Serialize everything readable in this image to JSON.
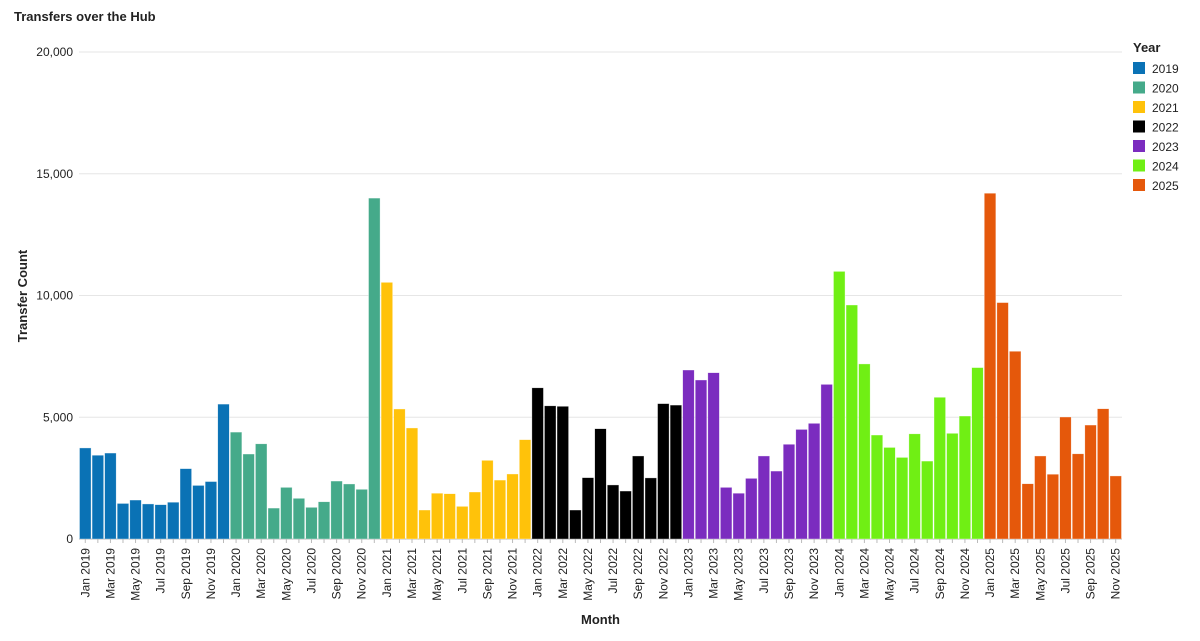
{
  "chart_data": {
    "type": "bar",
    "title": "Transfers over the Hub",
    "xlabel": "Month",
    "ylabel": "Transfer Count",
    "ylim": [
      0,
      20000
    ],
    "yticks": [
      0,
      5000,
      10000,
      15000,
      20000
    ],
    "ytick_labels": [
      "0",
      "5,000",
      "10,000",
      "15,000",
      "20,000"
    ],
    "grid": true,
    "legend": {
      "title": "Year",
      "placement": "top-right"
    },
    "months": [
      "Jan",
      "Feb",
      "Mar",
      "Apr",
      "May",
      "Jun",
      "Jul",
      "Aug",
      "Sep",
      "Oct",
      "Nov",
      "Dec"
    ],
    "series": [
      {
        "name": "2019",
        "color": "#0a72b5",
        "values": [
          3740,
          3440,
          3530,
          1460,
          1600,
          1440,
          1410,
          1510,
          2890,
          2200,
          2360,
          5540
        ]
      },
      {
        "name": "2020",
        "color": "#45aa8a",
        "values": [
          4390,
          3490,
          3910,
          1270,
          2120,
          1670,
          1300,
          1530,
          2380,
          2260,
          2040,
          14000
        ]
      },
      {
        "name": "2021",
        "color": "#ffc20a",
        "values": [
          10540,
          5340,
          4560,
          1190,
          1880,
          1860,
          1340,
          1930,
          3230,
          2420,
          2670,
          4080
        ]
      },
      {
        "name": "2022",
        "color": "#000000",
        "values": [
          6210,
          5470,
          5450,
          1190,
          2520,
          4530,
          2220,
          1970,
          3410,
          2510,
          5560,
          5500
        ]
      },
      {
        "name": "2023",
        "color": "#7b2cbf",
        "values": [
          6940,
          6530,
          6830,
          2120,
          1880,
          2490,
          3410,
          2790,
          3890,
          4500,
          4750,
          6350
        ]
      },
      {
        "name": "2024",
        "color": "#70ef14",
        "values": [
          10990,
          9610,
          7190,
          4270,
          3760,
          3350,
          4320,
          3200,
          5820,
          4340,
          5050,
          7040
        ]
      },
      {
        "name": "2025",
        "color": "#e5580b",
        "values": [
          14200,
          9710,
          7710,
          2270,
          3410,
          2660,
          5010,
          3500,
          4680,
          5350,
          2590
        ]
      }
    ]
  }
}
